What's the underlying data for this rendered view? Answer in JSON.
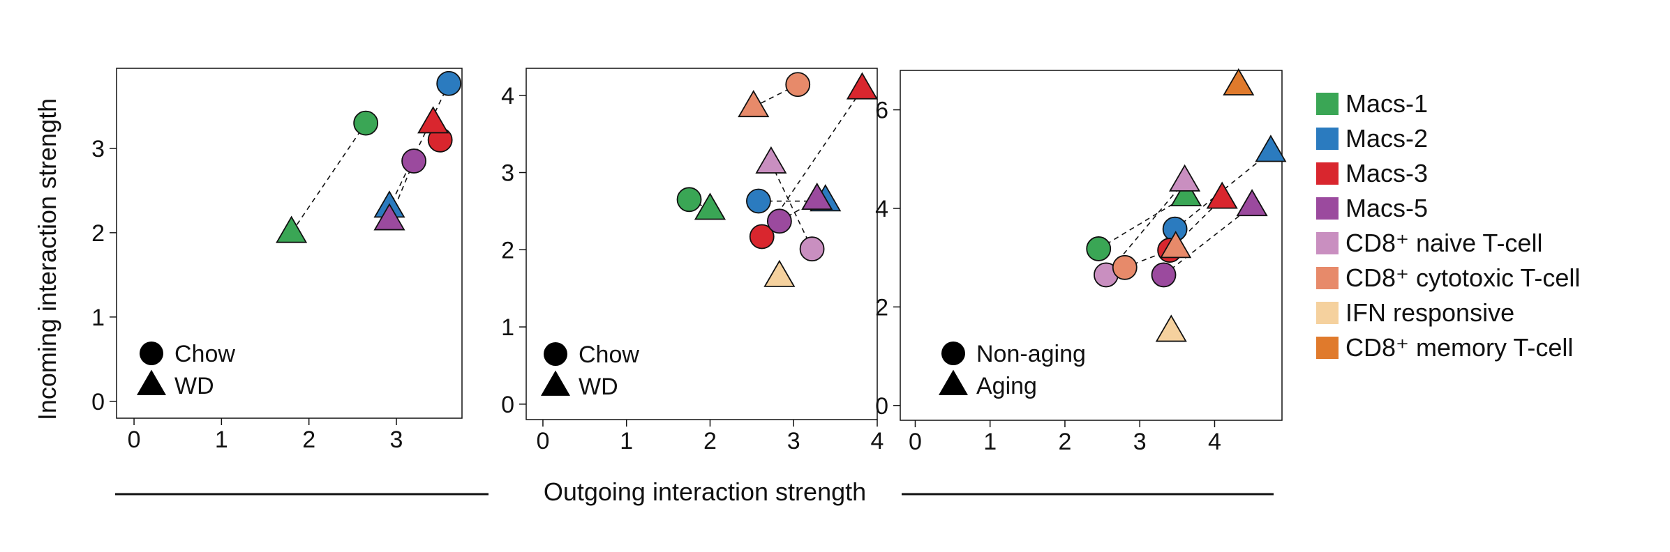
{
  "figure": {
    "ylabel": "Incoming interaction strength",
    "xlabel": "Outgoing interaction strength"
  },
  "legend": {
    "items": [
      {
        "label": "Macs-1",
        "color": "#3aa655"
      },
      {
        "label": "Macs-2",
        "color": "#2b7bbf"
      },
      {
        "label": "Macs-3",
        "color": "#d9262e"
      },
      {
        "label": "Macs-5",
        "color": "#9b4a9e"
      },
      {
        "label": "CD8⁺ naive T-cell",
        "color": "#c98fc0"
      },
      {
        "label": "CD8⁺ cytotoxic T-cell",
        "color": "#e78a6a"
      },
      {
        "label": "IFN responsive",
        "color": "#f5d19e"
      },
      {
        "label": "CD8⁺ memory T-cell",
        "color": "#e07a2c"
      }
    ]
  },
  "chart_data": [
    {
      "type": "scatter",
      "xlim": [
        -0.2,
        3.75
      ],
      "ylim": [
        -0.2,
        3.95
      ],
      "xticks": [
        0,
        1,
        2,
        3
      ],
      "yticks": [
        0,
        1,
        2,
        3
      ],
      "shape_legend": [
        {
          "shape": "circle",
          "label": "Chow"
        },
        {
          "shape": "triangle",
          "label": "WD"
        }
      ],
      "points": [
        {
          "group": "Macs-1",
          "shape": "circle",
          "x": 2.65,
          "y": 3.3
        },
        {
          "group": "Macs-1",
          "shape": "triangle",
          "x": 1.8,
          "y": 2.0
        },
        {
          "group": "Macs-2",
          "shape": "circle",
          "x": 3.6,
          "y": 3.77
        },
        {
          "group": "Macs-2",
          "shape": "triangle",
          "x": 2.92,
          "y": 2.3
        },
        {
          "group": "Macs-3",
          "shape": "circle",
          "x": 3.5,
          "y": 3.1
        },
        {
          "group": "Macs-3",
          "shape": "triangle",
          "x": 3.42,
          "y": 3.3
        },
        {
          "group": "Macs-5",
          "shape": "circle",
          "x": 3.2,
          "y": 2.85
        },
        {
          "group": "Macs-5",
          "shape": "triangle",
          "x": 2.92,
          "y": 2.15
        }
      ],
      "links": [
        [
          "Macs-1"
        ],
        [
          "Macs-2"
        ],
        [
          "Macs-3"
        ],
        [
          "Macs-5"
        ]
      ]
    },
    {
      "type": "scatter",
      "xlim": [
        -0.2,
        4.0
      ],
      "ylim": [
        -0.2,
        4.35
      ],
      "xticks": [
        0,
        1,
        2,
        3,
        4
      ],
      "yticks": [
        0,
        1,
        2,
        3,
        4
      ],
      "shape_legend": [
        {
          "shape": "circle",
          "label": "Chow"
        },
        {
          "shape": "triangle",
          "label": "WD"
        }
      ],
      "points": [
        {
          "group": "Macs-1",
          "shape": "circle",
          "x": 1.75,
          "y": 2.65
        },
        {
          "group": "Macs-1",
          "shape": "triangle",
          "x": 2.0,
          "y": 2.52
        },
        {
          "group": "Macs-2",
          "shape": "circle",
          "x": 2.58,
          "y": 2.63
        },
        {
          "group": "Macs-2",
          "shape": "triangle",
          "x": 3.38,
          "y": 2.63
        },
        {
          "group": "Macs-3",
          "shape": "circle",
          "x": 2.62,
          "y": 2.17
        },
        {
          "group": "Macs-3",
          "shape": "triangle",
          "x": 3.82,
          "y": 4.08
        },
        {
          "group": "Macs-5",
          "shape": "circle",
          "x": 2.83,
          "y": 2.37
        },
        {
          "group": "Macs-5",
          "shape": "triangle",
          "x": 3.28,
          "y": 2.65
        },
        {
          "group": "CD8⁺ naive T-cell",
          "shape": "circle",
          "x": 3.22,
          "y": 2.01
        },
        {
          "group": "CD8⁺ naive T-cell",
          "shape": "triangle",
          "x": 2.73,
          "y": 3.12
        },
        {
          "group": "CD8⁺ cytotoxic T-cell",
          "shape": "circle",
          "x": 3.05,
          "y": 4.14
        },
        {
          "group": "CD8⁺ cytotoxic T-cell",
          "shape": "triangle",
          "x": 2.52,
          "y": 3.85
        },
        {
          "group": "IFN responsive",
          "shape": "triangle",
          "x": 2.83,
          "y": 1.65
        }
      ],
      "links": [
        [
          "Macs-1"
        ],
        [
          "Macs-2"
        ],
        [
          "Macs-3"
        ],
        [
          "Macs-5"
        ],
        [
          "CD8⁺ naive T-cell"
        ],
        [
          "CD8⁺ cytotoxic T-cell"
        ]
      ]
    },
    {
      "type": "scatter",
      "xlim": [
        -0.2,
        4.9
      ],
      "ylim": [
        -0.3,
        6.8
      ],
      "xticks": [
        0,
        1,
        2,
        3,
        4
      ],
      "yticks": [
        0,
        2,
        4,
        6
      ],
      "shape_legend": [
        {
          "shape": "circle",
          "label": "Non-aging"
        },
        {
          "shape": "triangle",
          "label": "Aging"
        }
      ],
      "points": [
        {
          "group": "Macs-1",
          "shape": "circle",
          "x": 2.45,
          "y": 3.18
        },
        {
          "group": "Macs-1",
          "shape": "triangle",
          "x": 3.62,
          "y": 4.25
        },
        {
          "group": "Macs-2",
          "shape": "circle",
          "x": 3.47,
          "y": 3.58
        },
        {
          "group": "Macs-2",
          "shape": "triangle",
          "x": 4.75,
          "y": 5.15
        },
        {
          "group": "Macs-3",
          "shape": "circle",
          "x": 3.4,
          "y": 3.15
        },
        {
          "group": "Macs-3",
          "shape": "triangle",
          "x": 4.1,
          "y": 4.2
        },
        {
          "group": "Macs-5",
          "shape": "circle",
          "x": 3.32,
          "y": 2.65
        },
        {
          "group": "Macs-5",
          "shape": "triangle",
          "x": 4.5,
          "y": 4.05
        },
        {
          "group": "CD8⁺ naive T-cell",
          "shape": "circle",
          "x": 2.55,
          "y": 2.65
        },
        {
          "group": "CD8⁺ naive T-cell",
          "shape": "triangle",
          "x": 3.6,
          "y": 4.55
        },
        {
          "group": "CD8⁺ cytotoxic T-cell",
          "shape": "circle",
          "x": 2.8,
          "y": 2.8
        },
        {
          "group": "CD8⁺ cytotoxic T-cell",
          "shape": "triangle",
          "x": 3.48,
          "y": 3.2
        },
        {
          "group": "IFN responsive",
          "shape": "triangle",
          "x": 3.42,
          "y": 1.5
        },
        {
          "group": "CD8⁺ memory T-cell",
          "shape": "triangle",
          "x": 4.32,
          "y": 6.5
        }
      ],
      "links": [
        [
          "Macs-1"
        ],
        [
          "Macs-2"
        ],
        [
          "Macs-3"
        ],
        [
          "Macs-5"
        ],
        [
          "CD8⁺ naive T-cell"
        ],
        [
          "CD8⁺ cytotoxic T-cell"
        ]
      ]
    }
  ]
}
